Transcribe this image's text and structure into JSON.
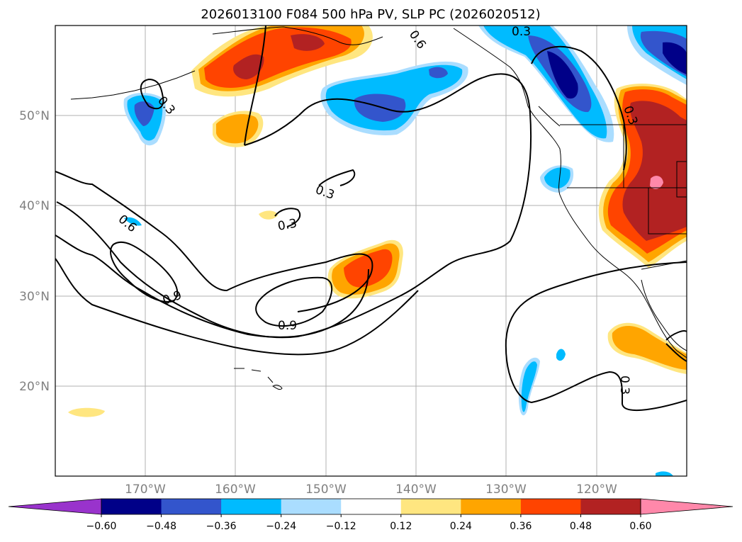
{
  "chart_data": {
    "type": "filled-contour-map",
    "title": "2026013100 F084 500 hPa PV, SLP PC (2026020512)",
    "x_ticks": [
      "170°W",
      "160°W",
      "150°W",
      "140°W",
      "130°W",
      "120°W"
    ],
    "y_ticks": [
      "50°N",
      "40°N",
      "30°N",
      "20°N"
    ],
    "lon_range": [
      -180,
      -110
    ],
    "lat_range": [
      10,
      60
    ],
    "colorbar": {
      "ticks": [
        "−0.60",
        "−0.48",
        "−0.36",
        "−0.24",
        "−0.12",
        "0.12",
        "0.24",
        "0.36",
        "0.48",
        "0.60"
      ],
      "levels": [
        -0.6,
        -0.48,
        -0.36,
        -0.24,
        -0.12,
        0.12,
        0.24,
        0.36,
        0.48,
        0.6
      ],
      "colors": {
        "below": "#9933cc",
        "n060": "#000088",
        "n048": "#3355cc",
        "n036": "#00bbff",
        "n024": "#aaddff",
        "n012": "#ffffff",
        "p012": "#ffe680",
        "p024": "#ffa500",
        "p036": "#ff4400",
        "p048": "#b22222",
        "above": "#ff88aa"
      }
    },
    "contour_labels": [
      "0.3",
      "0.6",
      "0.3",
      "0.3",
      "0.3",
      "0.3",
      "0.6",
      "0.9",
      "0.9",
      "0.3"
    ]
  }
}
